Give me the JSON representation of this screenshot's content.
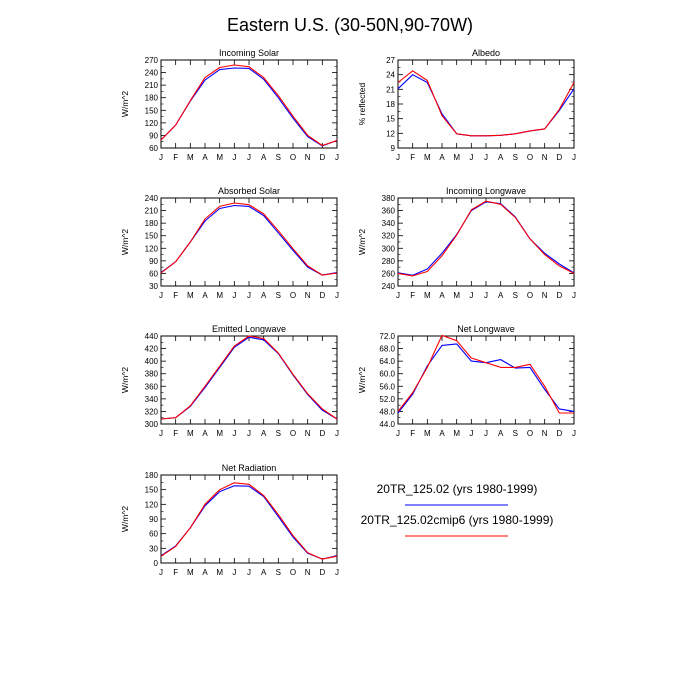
{
  "title": "Eastern U.S. (30-50N,90-70W)",
  "months": [
    "J",
    "F",
    "M",
    "A",
    "M",
    "J",
    "J",
    "A",
    "S",
    "O",
    "N",
    "D",
    "J"
  ],
  "colors": {
    "run1": "#0000ff",
    "run2": "#ff0000",
    "axis": "#000000"
  },
  "legend": [
    {
      "label": "20TR_125.02 (yrs 1980-1999)",
      "color": "#0000ff"
    },
    {
      "label": "20TR_125.02cmip6 (yrs 1980-1999)",
      "color": "#ff0000"
    }
  ],
  "chart_data": [
    {
      "type": "line",
      "title": "Incoming Solar",
      "ylabel": "W/m^2",
      "ylim": [
        60,
        270
      ],
      "yticks": [
        "60",
        "90",
        "120",
        "150",
        "180",
        "210",
        "240",
        "270"
      ],
      "series": [
        {
          "name": "20TR_125.02 (yrs 1980-1999)",
          "values": [
            79,
            115,
            172,
            222,
            247,
            251,
            250,
            224,
            180,
            131,
            87,
            65,
            78
          ]
        },
        {
          "name": "20TR_125.02cmip6 (yrs 1980-1999)",
          "values": [
            79,
            115,
            173,
            228,
            252,
            258,
            254,
            228,
            185,
            136,
            90,
            66,
            78
          ]
        }
      ]
    },
    {
      "type": "line",
      "title": "Albedo",
      "ylabel": "% reflected",
      "ylim": [
        9,
        27
      ],
      "yticks": [
        "9",
        "12",
        "15",
        "18",
        "21",
        "24",
        "27"
      ],
      "series": [
        {
          "name": "20TR_125.02 (yrs 1980-1999)",
          "values": [
            21.1,
            24.0,
            22.4,
            16.0,
            11.9,
            11.5,
            11.5,
            11.6,
            11.9,
            12.5,
            12.9,
            16.7,
            21.1
          ]
        },
        {
          "name": "20TR_125.02cmip6 (yrs 1980-1999)",
          "values": [
            22.4,
            24.8,
            22.8,
            15.6,
            11.9,
            11.5,
            11.5,
            11.6,
            11.9,
            12.5,
            12.9,
            16.9,
            22.4
          ]
        }
      ]
    },
    {
      "type": "line",
      "title": "Absorbed Solar",
      "ylabel": "W/m^2",
      "ylim": [
        30,
        240
      ],
      "yticks": [
        "30",
        "60",
        "90",
        "120",
        "150",
        "180",
        "210",
        "240"
      ],
      "series": [
        {
          "name": "20TR_125.02 (yrs 1980-1999)",
          "values": [
            62,
            88,
            135,
            185,
            215,
            222,
            220,
            198,
            157,
            115,
            75,
            56,
            62
          ]
        },
        {
          "name": "20TR_125.02cmip6 (yrs 1980-1999)",
          "values": [
            61,
            88,
            135,
            190,
            220,
            228,
            224,
            202,
            162,
            119,
            78,
            56,
            61
          ]
        }
      ]
    },
    {
      "type": "line",
      "title": "Incoming Longwave",
      "ylabel": "W/m^2",
      "ylim": [
        240,
        380
      ],
      "yticks": [
        "240",
        "260",
        "280",
        "300",
        "320",
        "340",
        "360",
        "380"
      ],
      "series": [
        {
          "name": "20TR_125.02 (yrs 1980-1999)",
          "values": [
            261,
            257,
            267,
            292,
            322,
            360,
            374,
            371,
            350,
            315,
            292,
            275,
            261
          ]
        },
        {
          "name": "20TR_125.02cmip6 (yrs 1980-1999)",
          "values": [
            260,
            256,
            263,
            288,
            321,
            361,
            375,
            370,
            349,
            315,
            290,
            272,
            260
          ]
        }
      ]
    },
    {
      "type": "line",
      "title": "Emitted Longwave",
      "ylabel": "W/m^2",
      "ylim": [
        300,
        440
      ],
      "yticks": [
        "300",
        "320",
        "340",
        "360",
        "380",
        "400",
        "420",
        "440"
      ],
      "series": [
        {
          "name": "20TR_125.02 (yrs 1980-1999)",
          "values": [
            308,
            310,
            328,
            358,
            390,
            422,
            438,
            434,
            412,
            378,
            347,
            322,
            308
          ]
        },
        {
          "name": "20TR_125.02cmip6 (yrs 1980-1999)",
          "values": [
            308,
            310,
            329,
            360,
            392,
            424,
            440,
            436,
            413,
            379,
            348,
            324,
            308
          ]
        }
      ]
    },
    {
      "type": "line",
      "title": "Net Longwave",
      "ylabel": "W/m^2",
      "ylim": [
        44,
        72
      ],
      "yticks": [
        "44.0",
        "48.0",
        "52.0",
        "56.0",
        "60.0",
        "64.0",
        "68.0",
        "72.0"
      ],
      "series": [
        {
          "name": "20TR_125.02 (yrs 1980-1999)",
          "values": [
            47.5,
            53.5,
            62.5,
            69.0,
            69.5,
            64.0,
            63.5,
            64.5,
            61.8,
            62.0,
            55.0,
            48.8,
            48.0
          ]
        },
        {
          "name": "20TR_125.02cmip6 (yrs 1980-1999)",
          "values": [
            48.0,
            54.0,
            62.0,
            72.2,
            70.5,
            65.0,
            63.5,
            62.0,
            62.0,
            63.0,
            56.0,
            47.5,
            47.5
          ]
        }
      ]
    },
    {
      "type": "line",
      "title": "Net Radiation",
      "ylabel": "W/m^2",
      "ylim": [
        0,
        180
      ],
      "yticks": [
        "0",
        "30",
        "60",
        "90",
        "120",
        "150",
        "180"
      ],
      "series": [
        {
          "name": "20TR_125.02 (yrs 1980-1999)",
          "values": [
            15,
            35,
            72,
            117,
            146,
            158,
            157,
            136,
            95,
            53,
            20,
            8,
            15
          ]
        },
        {
          "name": "20TR_125.02cmip6 (yrs 1980-1999)",
          "values": [
            14,
            34,
            72,
            120,
            150,
            164,
            161,
            138,
            99,
            56,
            21,
            8,
            14
          ]
        }
      ]
    }
  ]
}
